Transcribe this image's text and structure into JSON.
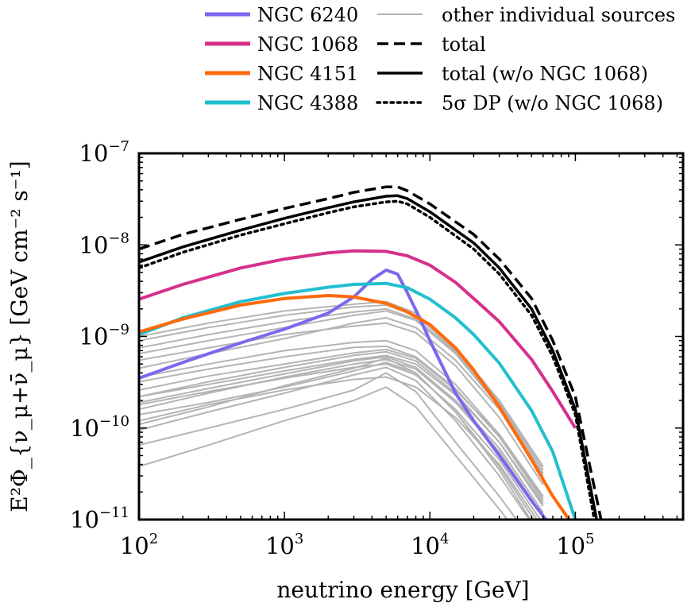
{
  "chart_data": {
    "type": "line",
    "xscale": "log",
    "yscale": "log",
    "xlim": [
      100,
      550000
    ],
    "ylim": [
      1e-11,
      1e-07
    ],
    "xlabel": "neutrino energy [GeV]",
    "ylabel": "E²Φ_{ν_μ+ν̄_μ} [GeV cm⁻² s⁻¹]",
    "x_ticks": [
      {
        "value": 100,
        "base": "10",
        "exp": "2"
      },
      {
        "value": 1000,
        "base": "10",
        "exp": "3"
      },
      {
        "value": 10000,
        "base": "10",
        "exp": "4"
      },
      {
        "value": 100000,
        "base": "10",
        "exp": "5"
      }
    ],
    "y_ticks": [
      {
        "value": 1e-11,
        "base": "10",
        "exp": "−11"
      },
      {
        "value": 1e-10,
        "base": "10",
        "exp": "−10"
      },
      {
        "value": 1e-09,
        "base": "10",
        "exp": "−9"
      },
      {
        "value": 1e-08,
        "base": "10",
        "exp": "−8"
      },
      {
        "value": 1e-07,
        "base": "10",
        "exp": "−7"
      }
    ],
    "grid": false,
    "legend_placement": "above",
    "series": [
      {
        "name": "NGC 6240",
        "color": "#7B68EE",
        "style": "solid",
        "width": 4,
        "x": [
          100,
          200,
          500,
          1000,
          2000,
          3000,
          4000,
          5000,
          6000,
          7000,
          8500,
          10000,
          15000,
          20000,
          30000,
          50000,
          70000
        ],
        "y": [
          3.5e-10,
          5.2e-10,
          8.5e-10,
          1.2e-09,
          1.8e-09,
          2.7e-09,
          4.2e-09,
          5.3e-09,
          4.8e-09,
          3e-09,
          1.6e-09,
          9e-10,
          2.4e-10,
          1.2e-10,
          5e-11,
          1.6e-11,
          8e-12
        ]
      },
      {
        "name": "NGC 1068",
        "color": "#D6308A",
        "style": "solid",
        "width": 4,
        "x": [
          100,
          200,
          500,
          1000,
          2000,
          3000,
          5000,
          7000,
          10000,
          15000,
          20000,
          30000,
          50000,
          70000,
          100000
        ],
        "y": [
          2.55e-09,
          3.7e-09,
          5.6e-09,
          7e-09,
          8.2e-09,
          8.6e-09,
          8.5e-09,
          7.6e-09,
          6e-09,
          3.9e-09,
          2.6e-09,
          1.45e-09,
          5.6e-10,
          2.5e-10,
          1e-10
        ]
      },
      {
        "name": "NGC 4151",
        "color": "#FF6A0A",
        "style": "solid",
        "width": 4,
        "x": [
          100,
          200,
          500,
          1000,
          2000,
          3000,
          5000,
          7000,
          10000,
          15000,
          20000,
          30000,
          50000,
          70000,
          100000
        ],
        "y": [
          1.12e-09,
          1.55e-09,
          2.2e-09,
          2.6e-09,
          2.8e-09,
          2.7e-09,
          2.3e-09,
          1.85e-09,
          1.35e-09,
          7.5e-10,
          4.3e-10,
          1.7e-10,
          4.5e-11,
          1.8e-11,
          8e-12
        ]
      },
      {
        "name": "NGC 4388",
        "color": "#22BFCF",
        "style": "solid",
        "width": 4,
        "x": [
          100,
          200,
          500,
          1000,
          2000,
          3000,
          5000,
          7000,
          10000,
          15000,
          20000,
          30000,
          50000,
          70000,
          100000
        ],
        "y": [
          1.05e-09,
          1.6e-09,
          2.4e-09,
          2.95e-09,
          3.45e-09,
          3.7e-09,
          3.8e-09,
          3.4e-09,
          2.55e-09,
          1.6e-09,
          1.05e-09,
          5.1e-10,
          1.55e-10,
          5.5e-11,
          1e-11
        ]
      },
      {
        "name": "total",
        "color": "#000000",
        "style": "dashed",
        "width": 3.5,
        "x": [
          100,
          200,
          500,
          1000,
          2000,
          3000,
          5000,
          6000,
          7000,
          10000,
          20000,
          30000,
          50000,
          70000,
          100000,
          150000
        ],
        "y": [
          9e-09,
          1.3e-08,
          1.9e-08,
          2.5e-08,
          3.2e-08,
          3.75e-08,
          4.3e-08,
          4.3e-08,
          3.9e-08,
          2.8e-08,
          1.3e-08,
          7e-09,
          2.6e-09,
          9e-10,
          2.2e-10,
          1e-11
        ]
      },
      {
        "name": "total (w/o NGC 1068)",
        "color": "#000000",
        "style": "solid",
        "width": 3.5,
        "x": [
          100,
          200,
          500,
          1000,
          2000,
          3000,
          5000,
          6000,
          7000,
          10000,
          20000,
          30000,
          50000,
          70000,
          100000,
          140000
        ],
        "y": [
          6.5e-09,
          9.5e-09,
          1.45e-08,
          1.95e-08,
          2.55e-08,
          2.95e-08,
          3.4e-08,
          3.45e-08,
          3.2e-08,
          2.3e-08,
          1.05e-08,
          5.6e-09,
          2e-09,
          7e-10,
          1.6e-10,
          1e-11
        ]
      },
      {
        "name": "5σ DP (w/o NGC 1068)",
        "color": "#000000",
        "style": "dotted",
        "width": 3.5,
        "x": [
          100,
          200,
          500,
          1000,
          2000,
          3000,
          5000,
          6000,
          7000,
          10000,
          20000,
          30000,
          50000,
          70000,
          100000,
          135000
        ],
        "y": [
          5.6e-09,
          8.3e-09,
          1.28e-08,
          1.7e-08,
          2.25e-08,
          2.6e-08,
          2.95e-08,
          3e-08,
          2.8e-08,
          2e-08,
          9e-09,
          4.8e-09,
          1.7e-09,
          6e-10,
          1.4e-10,
          1e-11
        ]
      }
    ],
    "other_sources": {
      "name": "other individual sources",
      "color": "#B4B4B4",
      "x": [
        100,
        300,
        1000,
        3000,
        5000,
        8000,
        15000,
        30000,
        60000
      ],
      "profiles": [
        [
          1.4e-10,
          1.9e-10,
          2.8e-10,
          4.2e-10,
          5.2e-10,
          4e-10,
          1.5e-10,
          3.5e-11,
          6e-12
        ],
        [
          1.2e-10,
          1.8e-10,
          2.6e-10,
          3.4e-10,
          3.6e-10,
          2.8e-10,
          1.3e-10,
          4e-11,
          8e-12
        ],
        [
          2.2e-10,
          3e-10,
          4.2e-10,
          5.6e-10,
          6.2e-10,
          5e-10,
          2.3e-10,
          7e-11,
          1.5e-11
        ],
        [
          2.6e-10,
          3.7e-10,
          5e-10,
          6.6e-10,
          7.2e-10,
          5.8e-10,
          2.6e-10,
          8.5e-11,
          1.8e-11
        ],
        [
          6.5e-11,
          1e-10,
          1.6e-10,
          2.6e-10,
          4e-10,
          2.5e-10,
          7e-11,
          1.8e-11,
          4e-12
        ],
        [
          4.5e-10,
          6.5e-10,
          9.5e-10,
          1.4e-09,
          1.6e-09,
          1.25e-09,
          5.5e-10,
          1.6e-10,
          2.8e-11
        ],
        [
          6.5e-10,
          9e-10,
          1.25e-09,
          1.7e-09,
          1.9e-09,
          1.5e-09,
          6.5e-10,
          1.7e-10,
          3e-11
        ],
        [
          9e-10,
          1.25e-09,
          1.7e-09,
          2.1e-09,
          2.2e-09,
          1.7e-09,
          7e-10,
          1.9e-10,
          3.5e-11
        ],
        [
          1e-09,
          1.4e-09,
          1.9e-09,
          2.25e-09,
          2.4e-09,
          1.8e-09,
          7.5e-10,
          2e-10,
          3.8e-11
        ],
        [
          1.8e-10,
          2.5e-10,
          3.5e-10,
          4.6e-10,
          5e-10,
          3.8e-10,
          1.6e-10,
          4.5e-11,
          9e-12
        ],
        [
          3.8e-11,
          6.5e-11,
          1.2e-10,
          2e-10,
          2.8e-10,
          1.7e-10,
          5e-11,
          1.3e-11,
          3e-12
        ],
        [
          1.6e-10,
          2.4e-10,
          3.6e-10,
          5e-10,
          5.6e-10,
          4.4e-10,
          1.9e-10,
          5.5e-11,
          1.1e-11
        ],
        [
          3.2e-10,
          4.4e-10,
          6e-10,
          7.6e-10,
          7.8e-10,
          6e-10,
          2.7e-10,
          8e-11,
          1.6e-11
        ],
        [
          9.5e-11,
          1.5e-10,
          2.4e-10,
          3.8e-10,
          4.6e-10,
          3.3e-10,
          1.2e-10,
          3e-11,
          6e-12
        ],
        [
          5.5e-10,
          7.5e-10,
          1.05e-09,
          1.3e-09,
          1.4e-09,
          1.1e-09,
          4.8e-10,
          1.3e-10,
          2.4e-11
        ],
        [
          2.2e-10,
          3.2e-10,
          4.6e-10,
          6.2e-10,
          6.8e-10,
          5.4e-10,
          2.4e-10,
          7e-11,
          1.4e-11
        ],
        [
          1.9e-10,
          2.7e-10,
          3.9e-10,
          5.4e-10,
          6e-10,
          4.6e-10,
          2e-10,
          6e-11,
          1.2e-11
        ],
        [
          3.6e-10,
          5e-10,
          7e-10,
          8.6e-10,
          9e-10,
          7e-10,
          3e-10,
          8.5e-11,
          1.7e-11
        ],
        [
          1.1e-10,
          1.7e-10,
          2.9e-10,
          4.5e-10,
          5.8e-10,
          4e-10,
          1.5e-10,
          3.8e-11,
          7e-12
        ],
        [
          7.5e-10,
          1.05e-09,
          1.45e-09,
          1.85e-09,
          2e-09,
          1.55e-09,
          6.8e-10,
          1.8e-10,
          3.2e-11
        ]
      ]
    }
  }
}
